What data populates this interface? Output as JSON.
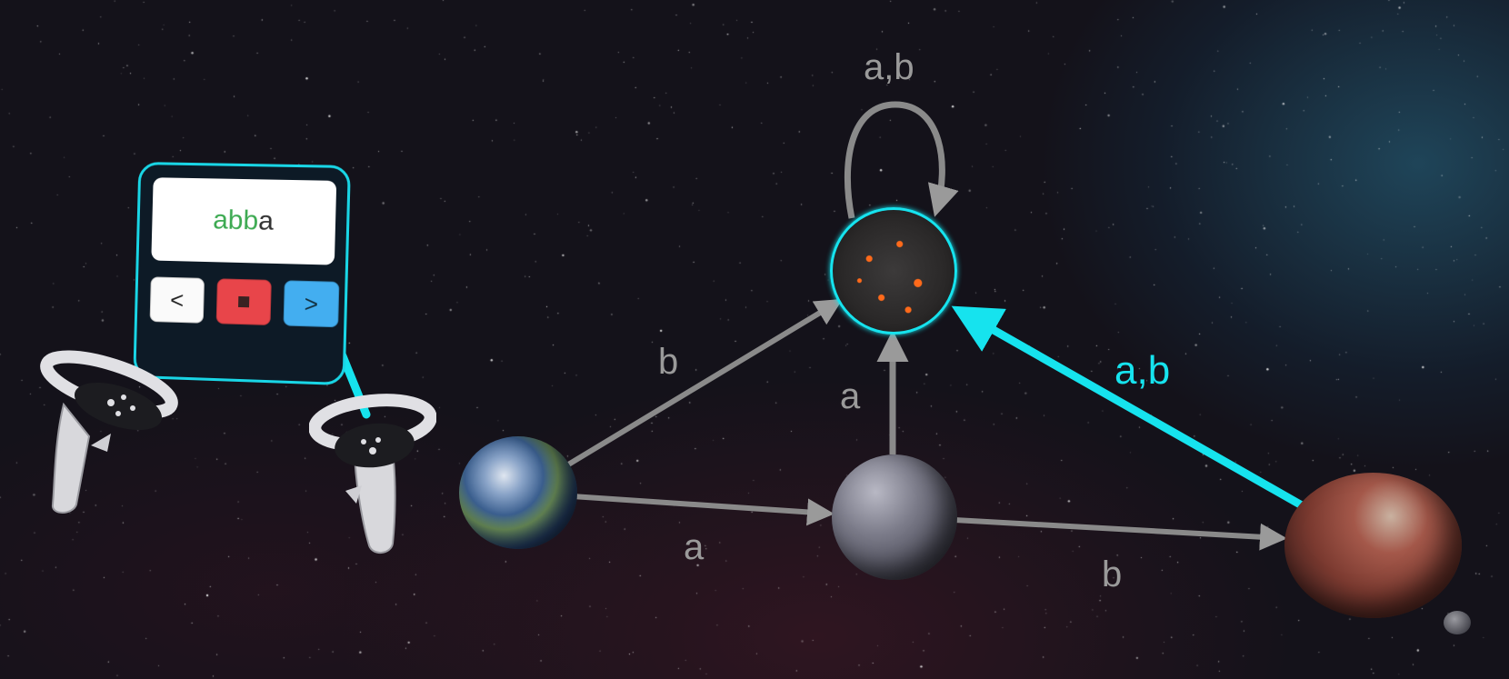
{
  "panel": {
    "word_read": "abb",
    "word_rest": "a",
    "prev_label": "<",
    "next_label": ">"
  },
  "edges": {
    "self_loop_label": "a,b",
    "earth_to_lava_label": "b",
    "earth_to_moon_label": "a",
    "moon_to_lava_label": "a",
    "moon_to_mars_label": "b",
    "mars_to_lava_label": "a,b"
  },
  "colors": {
    "highlight": "#16e3ee",
    "edge": "#8a8a8a",
    "accent_green": "#3daa52",
    "stop_red": "#e8454a",
    "next_blue": "#43aef0"
  },
  "icons": {
    "stop": "stop-square-icon",
    "controllers": "vr-controller-icon"
  }
}
